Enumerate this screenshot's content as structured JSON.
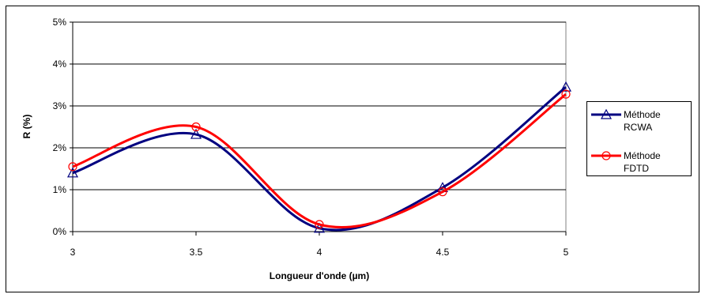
{
  "chart_data": {
    "type": "line",
    "title": "",
    "xlabel": "Longueur d'onde (µm)",
    "ylabel": "R (%)",
    "x": [
      3,
      3.5,
      4,
      4.5,
      5
    ],
    "x_tick_labels": [
      "3",
      "3.5",
      "4",
      "4.5",
      "5"
    ],
    "xlim": [
      3,
      5
    ],
    "ylim": [
      0,
      5
    ],
    "y_tick_values": [
      0,
      1,
      2,
      3,
      4,
      5
    ],
    "y_tick_labels": [
      "0%",
      "1%",
      "2%",
      "3%",
      "4%",
      "5%"
    ],
    "grid": "horizontal",
    "smooth": true,
    "legend_position": "right",
    "series": [
      {
        "name_line1": "Méthode",
        "name_line2": "RCWA",
        "color": "#000080",
        "marker": "triangle",
        "values": [
          1.4,
          2.32,
          0.08,
          1.05,
          3.45
        ]
      },
      {
        "name_line1": "Méthode",
        "name_line2": "FDTD",
        "color": "#ff0000",
        "marker": "circle",
        "values": [
          1.55,
          2.5,
          0.17,
          0.95,
          3.28
        ]
      }
    ]
  }
}
